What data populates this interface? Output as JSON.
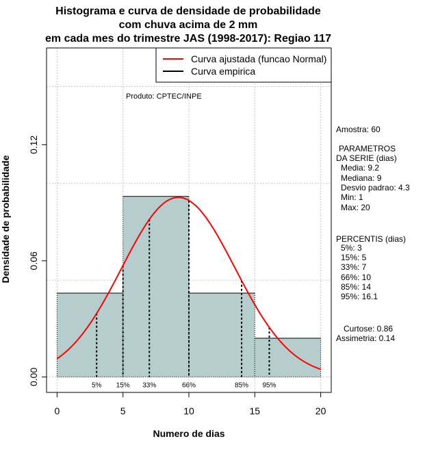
{
  "title_lines": [
    "Histograma e curva de densidade de probabilidade",
    "com chuva acima de 2 mm",
    "em cada mes do trimestre JAS (1998-2017): Regiao 117"
  ],
  "product_label": "Produto: CPTEC/INPE",
  "legend": {
    "fitted_label": "Curva ajustada (funcao Normal)",
    "empirical_label": "Curva empirica",
    "fitted_color": "#ff0000",
    "empirical_color": "#000000"
  },
  "stats": {
    "amostra": "Amostra: 60",
    "param_title_1": "PARAMETROS",
    "param_title_2": "DA SERIE (dias)",
    "media": "Media: 9.2",
    "mediana": "Mediana: 9",
    "desvio": "Desvio padrao: 4.3",
    "min": "Min: 1",
    "max": "Max: 20",
    "perc_title": "PERCENTIS (dias)",
    "p5": "5%: 3",
    "p15": "15%: 5",
    "p33": "33%: 7",
    "p66": "66%: 10",
    "p85": "85%: 14",
    "p95": "95%: 16.1",
    "curtose": "Curtose: 0.86",
    "assimetria": "Assimetria: 0.14"
  },
  "chart_data": {
    "type": "bar",
    "title": "Histograma e curva de densidade de probabilidade com chuva acima de 2 mm em cada mes do trimestre JAS (1998-2017): Regiao 117",
    "xlabel": "Numero de dias",
    "ylabel": "Densidade de probabilidade",
    "xlim": [
      -0.8,
      20.8
    ],
    "ylim": [
      -0.008,
      0.17
    ],
    "xticks": [
      0,
      5,
      10,
      15,
      20
    ],
    "xtick_labels": [
      "0",
      "5",
      "10",
      "15",
      "20"
    ],
    "yticks": [
      0.0,
      0.06,
      0.12
    ],
    "ytick_labels": [
      "0.00",
      "0.06",
      "0.12"
    ],
    "grid_x": [
      0,
      5,
      10,
      15,
      20
    ],
    "grid_y": [
      0.0,
      0.05,
      0.1,
      0.15
    ],
    "bins": [
      {
        "from": 0,
        "to": 5,
        "density": 0.0433
      },
      {
        "from": 5,
        "to": 10,
        "density": 0.0933
      },
      {
        "from": 10,
        "to": 15,
        "density": 0.0433
      },
      {
        "from": 15,
        "to": 20,
        "density": 0.02
      }
    ],
    "bar_color": "#b5cdcd",
    "normal_fit": {
      "mean": 9.2,
      "sd": 4.3,
      "x_from": 0,
      "x_to": 20,
      "color": "#ff0000"
    },
    "percentiles": [
      {
        "label": "5%",
        "value": 3
      },
      {
        "label": "15%",
        "value": 5
      },
      {
        "label": "33%",
        "value": 7
      },
      {
        "label": "66%",
        "value": 10
      },
      {
        "label": "85%",
        "value": 14
      },
      {
        "label": "95%",
        "value": 16.1
      }
    ]
  }
}
